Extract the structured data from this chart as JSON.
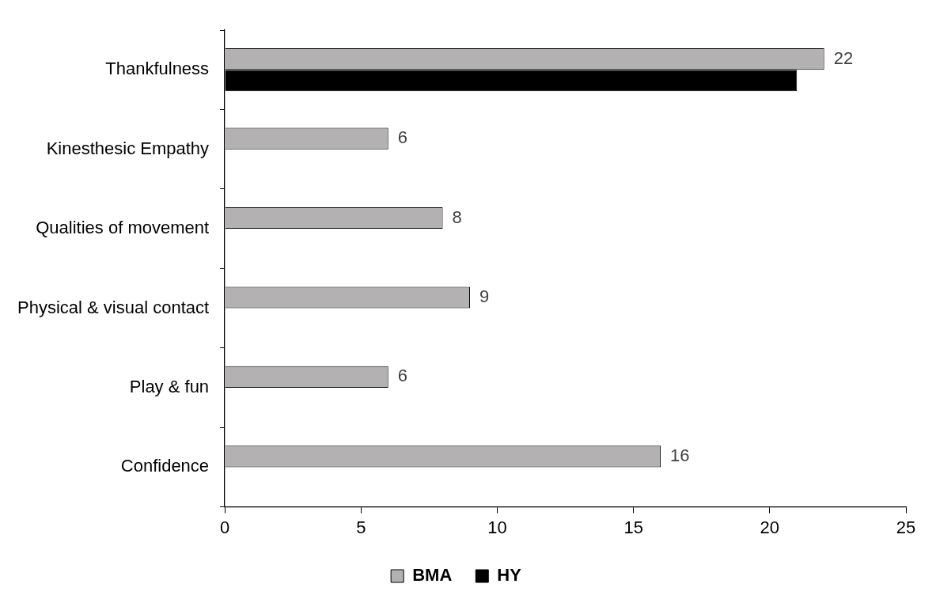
{
  "chart_data": {
    "type": "bar",
    "orientation": "horizontal",
    "categories": [
      "Thankfulness",
      "Kinesthesic Empathy",
      "Qualities of movement",
      "Physical & visual contact",
      "Play & fun",
      "Confidence"
    ],
    "series": [
      {
        "name": "BMA",
        "color": "#b3b1b1",
        "values": [
          22,
          6,
          8,
          9,
          6,
          16
        ],
        "value_labels": [
          "22",
          "6",
          "8",
          "9",
          "6",
          "16"
        ]
      },
      {
        "name": "HY",
        "color": "#000000",
        "values": [
          21,
          null,
          null,
          null,
          null,
          null
        ]
      }
    ],
    "xlim": [
      0,
      25
    ],
    "xticks": [
      0,
      5,
      10,
      15,
      20,
      25
    ],
    "grid": false,
    "legend": "bottom"
  }
}
